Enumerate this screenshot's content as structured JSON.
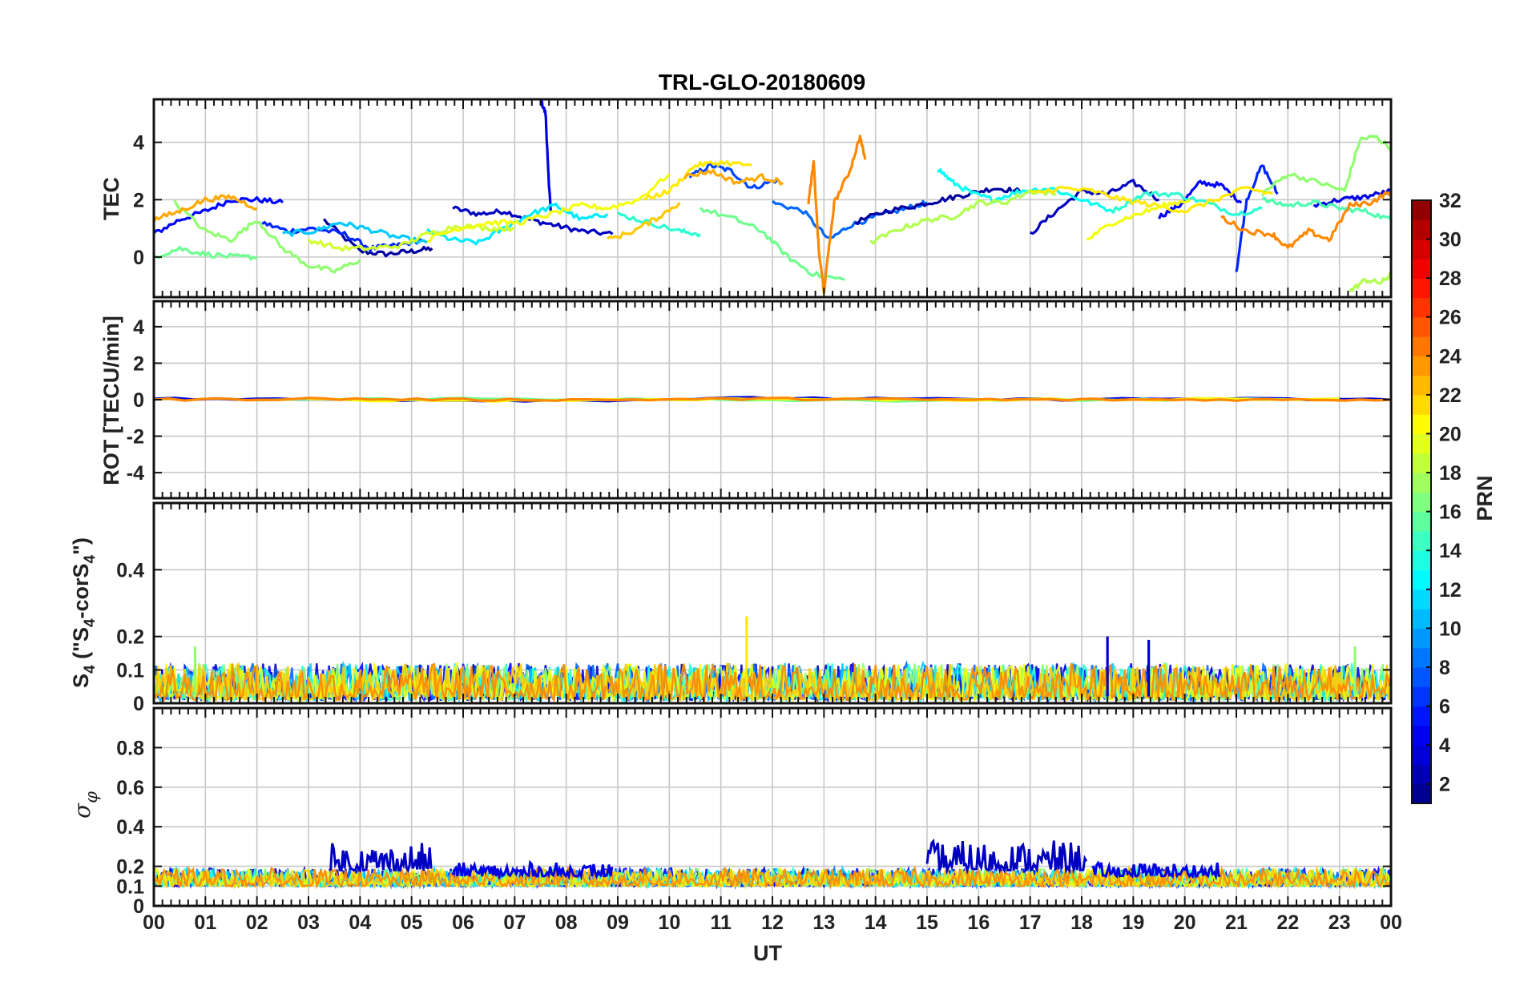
{
  "chart_data": [
    {
      "type": "line",
      "panel": "TEC",
      "title": "TRL-GLO-20180609",
      "ylabel": "TEC",
      "xlabel": "",
      "ylim": [
        -1.4,
        5.5
      ],
      "yticks": [
        0,
        2,
        4
      ],
      "grid": true,
      "series": [
        {
          "prn": 2,
          "x": [
            3.3,
            4.0,
            4.5,
            5.0,
            5.4
          ],
          "y": [
            1.3,
            0.2,
            0.1,
            0.2,
            0.3
          ]
        },
        {
          "prn": 3,
          "x": [
            5.8,
            6.3,
            6.8,
            7.3,
            7.8,
            8.3,
            8.9
          ],
          "y": [
            1.7,
            1.5,
            1.6,
            1.3,
            1.1,
            0.9,
            0.8
          ]
        },
        {
          "prn": 4,
          "x": [
            7.5,
            7.6,
            7.65,
            7.7
          ],
          "y": [
            5.5,
            5.0,
            3.0,
            1.6
          ]
        },
        {
          "prn": 5,
          "x": [
            0.0,
            0.5,
            1.0,
            1.5,
            2.0,
            2.5
          ],
          "y": [
            0.8,
            1.3,
            1.6,
            2.0,
            2.0,
            1.9
          ]
        },
        {
          "prn": 6,
          "x": [
            2.1,
            2.6,
            3.1,
            3.7,
            4.2,
            4.7,
            5.2
          ],
          "y": [
            1.2,
            0.9,
            1.0,
            0.8,
            0.3,
            0.4,
            0.6
          ]
        },
        {
          "prn": 7,
          "x": [
            10.4,
            10.8,
            11.2,
            11.6,
            12.1
          ],
          "y": [
            2.8,
            3.2,
            3.0,
            2.4,
            2.7
          ]
        },
        {
          "prn": 8,
          "x": [
            12.0,
            12.6,
            13.1,
            13.5,
            14.0,
            14.6,
            15.0
          ],
          "y": [
            1.9,
            1.6,
            0.6,
            1.1,
            1.4,
            1.7,
            1.9
          ]
        },
        {
          "prn": 2,
          "x": [
            13.6,
            14.2,
            14.8,
            15.3,
            15.8,
            16.3,
            16.8
          ],
          "y": [
            1.2,
            1.6,
            1.8,
            2.0,
            2.2,
            2.4,
            2.3
          ]
        },
        {
          "prn": 3,
          "x": [
            17.0,
            17.5,
            18.0,
            18.5,
            19.0,
            19.5
          ],
          "y": [
            0.8,
            1.6,
            2.3,
            2.2,
            2.6,
            2.0
          ]
        },
        {
          "prn": 5,
          "x": [
            19.5,
            19.9,
            20.3,
            20.7,
            21.1
          ],
          "y": [
            1.4,
            1.8,
            2.6,
            2.5,
            1.9
          ]
        },
        {
          "prn": 6,
          "x": [
            21.0,
            21.2,
            21.5,
            21.8
          ],
          "y": [
            -0.5,
            2.0,
            3.2,
            2.2
          ]
        },
        {
          "prn": 4,
          "x": [
            22.5,
            23.0,
            23.5,
            24.0
          ],
          "y": [
            1.8,
            2.0,
            2.1,
            2.3
          ]
        },
        {
          "prn": 11,
          "x": [
            2.5,
            3.1,
            3.6,
            4.1,
            4.7,
            5.3
          ],
          "y": [
            0.8,
            0.9,
            1.2,
            1.0,
            0.7,
            0.5
          ]
        },
        {
          "prn": 12,
          "x": [
            5.3,
            5.8,
            6.3,
            6.8,
            7.3,
            7.8,
            8.3,
            8.8
          ],
          "y": [
            0.9,
            0.6,
            0.5,
            1.0,
            1.5,
            1.8,
            1.3,
            1.5
          ]
        },
        {
          "prn": 13,
          "x": [
            15.2,
            15.5,
            15.9,
            16.3,
            16.8,
            17.4,
            18.0,
            18.6
          ],
          "y": [
            3.1,
            2.6,
            2.2,
            2.0,
            2.3,
            2.4,
            2.0,
            1.6
          ]
        },
        {
          "prn": 14,
          "x": [
            18.6,
            19.2,
            19.8,
            20.4,
            21.0,
            21.5
          ],
          "y": [
            1.6,
            2.2,
            2.2,
            1.9,
            1.5,
            1.7
          ]
        },
        {
          "prn": 14,
          "x": [
            9.0,
            9.6,
            10.2,
            10.6
          ],
          "y": [
            1.5,
            1.2,
            0.9,
            0.8
          ]
        },
        {
          "prn": 15,
          "x": [
            21.5,
            22.0,
            22.5,
            23.0,
            23.5,
            24.0
          ],
          "y": [
            2.0,
            1.8,
            1.9,
            1.7,
            1.6,
            1.3
          ]
        },
        {
          "prn": 16,
          "x": [
            0.0,
            0.5,
            1.0,
            1.6,
            2.0
          ],
          "y": [
            0.0,
            0.3,
            0.1,
            0.0,
            0.0
          ]
        },
        {
          "prn": 16,
          "x": [
            10.6,
            11.3,
            11.8,
            12.3,
            12.8,
            13.4
          ],
          "y": [
            1.7,
            1.3,
            0.9,
            0.0,
            -0.6,
            -0.8
          ]
        },
        {
          "prn": 17,
          "x": [
            21.5,
            22.0,
            22.6,
            23.1,
            23.4,
            23.7,
            24.0
          ],
          "y": [
            2.2,
            2.9,
            2.6,
            2.3,
            4.1,
            4.2,
            3.8
          ]
        },
        {
          "prn": 17,
          "x": [
            0.4,
            1.0,
            1.5,
            2.0,
            2.5,
            3.0,
            3.5,
            4.0
          ],
          "y": [
            1.9,
            0.9,
            0.6,
            1.3,
            0.3,
            -0.3,
            -0.5,
            -0.1
          ]
        },
        {
          "prn": 18,
          "x": [
            23.2,
            23.5,
            23.8,
            24.0
          ],
          "y": [
            -1.2,
            -0.8,
            -0.9,
            -0.6
          ]
        },
        {
          "prn": 18,
          "x": [
            13.9,
            14.5,
            15.0,
            15.5,
            16.0,
            16.5,
            17.0,
            17.5
          ],
          "y": [
            0.5,
            1.0,
            1.3,
            1.4,
            1.9,
            1.9,
            2.3,
            2.2
          ]
        },
        {
          "prn": 19,
          "x": [
            3.0,
            3.6,
            4.2,
            4.8,
            5.3,
            5.9,
            6.5,
            7.0
          ],
          "y": [
            0.6,
            0.3,
            0.3,
            0.4,
            0.8,
            1.1,
            1.0,
            1.0
          ]
        },
        {
          "prn": 20,
          "x": [
            5.3,
            5.9,
            6.5,
            7.1,
            7.7,
            8.3,
            8.8,
            9.4,
            10.0
          ],
          "y": [
            0.6,
            1.0,
            1.2,
            1.2,
            1.5,
            1.8,
            1.7,
            2.0,
            2.9
          ]
        },
        {
          "prn": 21,
          "x": [
            9.5,
            10.0,
            10.5,
            11.0,
            11.6
          ],
          "y": [
            2.0,
            2.3,
            3.2,
            3.3,
            3.2
          ]
        },
        {
          "prn": 21,
          "x": [
            17.0,
            17.6,
            18.2,
            18.8,
            19.4,
            20.0,
            20.6,
            21.2,
            21.7
          ],
          "y": [
            2.2,
            2.4,
            2.3,
            2.0,
            1.8,
            1.6,
            2.0,
            2.4,
            2.2
          ]
        },
        {
          "prn": 20,
          "x": [
            18.1,
            18.6,
            19.1,
            19.6,
            20.1
          ],
          "y": [
            0.6,
            1.2,
            1.5,
            1.8,
            2.0
          ]
        },
        {
          "prn": 23,
          "x": [
            0.0,
            0.5,
            1.0,
            1.5,
            2.0
          ],
          "y": [
            1.3,
            1.6,
            2.0,
            2.1,
            1.7
          ]
        },
        {
          "prn": 23,
          "x": [
            10.3,
            10.8,
            11.3,
            11.8,
            12.2
          ],
          "y": [
            2.8,
            3.0,
            2.6,
            2.8,
            2.6
          ]
        },
        {
          "prn": 24,
          "x": [
            12.7,
            12.8,
            12.9,
            13.0,
            13.2,
            13.5,
            13.7,
            13.8
          ],
          "y": [
            1.9,
            3.3,
            0.2,
            -1.2,
            1.9,
            3.0,
            4.2,
            3.4
          ]
        },
        {
          "prn": 24,
          "x": [
            20.7,
            21.2,
            21.7,
            22.0,
            22.4,
            22.8,
            23.2,
            23.6,
            24.0
          ],
          "y": [
            1.4,
            0.9,
            0.8,
            0.3,
            0.9,
            0.6,
            1.8,
            1.9,
            2.3
          ]
        },
        {
          "prn": 22,
          "x": [
            8.8,
            9.3,
            9.8,
            10.2
          ],
          "y": [
            0.6,
            0.9,
            1.4,
            1.9
          ]
        }
      ]
    },
    {
      "type": "line",
      "panel": "ROT",
      "ylabel": "ROT [TECU/min]",
      "xlabel": "",
      "ylim": [
        -5.4,
        5.4
      ],
      "yticks": [
        -4,
        -2,
        0,
        2,
        4
      ],
      "grid": true,
      "series": [
        {
          "prn": 4,
          "x": [
            0,
            4,
            8,
            12,
            16,
            20,
            24
          ],
          "y": [
            0.05,
            0.0,
            -0.05,
            0.1,
            0.0,
            0.05,
            0.0
          ]
        },
        {
          "prn": 16,
          "x": [
            2,
            6,
            10,
            14,
            18,
            22
          ],
          "y": [
            0.0,
            0.05,
            0.0,
            -0.05,
            0.0,
            0.0
          ]
        },
        {
          "prn": 20,
          "x": [
            3,
            7,
            11,
            15,
            19,
            23
          ],
          "y": [
            0.0,
            -0.05,
            0.05,
            0.0,
            0.0,
            0.05
          ]
        },
        {
          "prn": 24,
          "x": [
            0,
            3,
            6,
            9,
            12,
            15,
            18,
            21,
            24
          ],
          "y": [
            0.0,
            0.05,
            0.0,
            0.0,
            0.05,
            0.0,
            0.0,
            0.0,
            0.0
          ]
        }
      ]
    },
    {
      "type": "line",
      "panel": "S4",
      "ylabel": "S4 (\"S4-corS4\")",
      "xlabel": "",
      "ylim": [
        0,
        0.6
      ],
      "yticks": [
        0,
        0.1,
        0.2,
        0.4
      ],
      "grid": true,
      "peaks": [
        {
          "prn": 21,
          "x": 11.5,
          "y": 0.26
        },
        {
          "prn": 3,
          "x": 18.5,
          "y": 0.2
        },
        {
          "prn": 3,
          "x": 19.3,
          "y": 0.19
        },
        {
          "prn": 17,
          "x": 0.8,
          "y": 0.17
        },
        {
          "prn": 17,
          "x": 23.3,
          "y": 0.17
        }
      ],
      "baseline_range": [
        0.01,
        0.12
      ]
    },
    {
      "type": "line",
      "panel": "sigma_phi",
      "ylabel": "σ_φ",
      "xlabel": "UT",
      "ylim": [
        0,
        1.0
      ],
      "yticks": [
        0,
        0.1,
        0.2,
        0.4,
        0.6,
        0.8
      ],
      "grid": true,
      "elevated_segments": [
        {
          "prn": 3,
          "x": [
            3.4,
            5.4
          ],
          "y": [
            0.18,
            0.32
          ]
        },
        {
          "prn": 4,
          "x": [
            5.8,
            8.9
          ],
          "y": [
            0.15,
            0.22
          ]
        },
        {
          "prn": 3,
          "x": [
            15.0,
            18.1
          ],
          "y": [
            0.18,
            0.33
          ]
        },
        {
          "prn": 4,
          "x": [
            18.2,
            20.7
          ],
          "y": [
            0.15,
            0.22
          ]
        }
      ],
      "baseline_range": [
        0.1,
        0.19
      ]
    }
  ],
  "xaxis": {
    "label": "UT",
    "range": [
      0,
      24
    ],
    "tick_labels": [
      "00",
      "01",
      "02",
      "03",
      "04",
      "05",
      "06",
      "07",
      "08",
      "09",
      "10",
      "11",
      "12",
      "13",
      "14",
      "15",
      "16",
      "17",
      "18",
      "19",
      "20",
      "21",
      "22",
      "23",
      "00"
    ]
  },
  "colorbar": {
    "label": "PRN",
    "range": [
      1,
      32
    ],
    "ticks": [
      2,
      4,
      6,
      8,
      10,
      12,
      14,
      16,
      18,
      20,
      22,
      24,
      26,
      28,
      30,
      32
    ],
    "colormap": "jet"
  },
  "texts": {
    "title": "TRL-GLO-20180609",
    "tec_label": "TEC",
    "rot_label": "ROT [TECU/min]",
    "s4_label_main": "S",
    "s4_label_sub": "4",
    "s4_label_mid": " (\"S",
    "s4_label_mid2": "-corS",
    "s4_label_end": "\")",
    "sigma_label": "σ",
    "sigma_sub": "φ",
    "x_label": "UT",
    "cb_label": "PRN"
  }
}
